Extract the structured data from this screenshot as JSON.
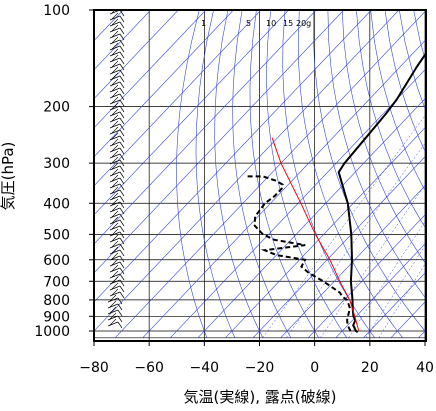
{
  "chart_data": {
    "type": "skew-t",
    "title": "",
    "xlabel": "気温(実線), 露点(破線)",
    "ylabel": "気圧(hPa)",
    "xlim": [
      -80,
      40
    ],
    "ylim": [
      1050,
      100
    ],
    "y_scale": "log",
    "x_ticks": [
      -80,
      -60,
      -40,
      -20,
      0,
      20,
      40
    ],
    "x_tick_labels": [
      "−80",
      "−60",
      "−40",
      "−20",
      "0",
      "20",
      "40"
    ],
    "y_ticks": [
      100,
      200,
      300,
      400,
      500,
      600,
      700,
      800,
      900,
      1000
    ],
    "y_tick_labels": [
      "100",
      "200",
      "300",
      "400",
      "500",
      "600",
      "700",
      "800",
      "900",
      "1000"
    ],
    "mixing_ratio_labels": [
      {
        "value": 1,
        "text": "1"
      },
      {
        "value": 5,
        "text": "5"
      },
      {
        "value": 10,
        "text": "10"
      },
      {
        "value": 15,
        "text": "15"
      },
      {
        "value": 20,
        "text": "20g"
      }
    ],
    "series": [
      {
        "style": "solid",
        "color": "#000000",
        "points": [
          [
            1008,
            16
          ],
          [
            1000,
            15
          ],
          [
            960,
            12
          ],
          [
            925,
            11
          ],
          [
            900,
            9
          ],
          [
            850,
            6
          ],
          [
            800,
            3
          ],
          [
            700,
            -4
          ],
          [
            600,
            -11
          ],
          [
            500,
            -20
          ],
          [
            400,
            -32
          ],
          [
            320,
            -46
          ],
          [
            300,
            -47
          ],
          [
            250,
            -48
          ],
          [
            210,
            -49
          ],
          [
            190,
            -50
          ],
          [
            150,
            -54
          ],
          [
            120,
            -57
          ],
          [
            100,
            -59
          ]
        ]
      },
      {
        "style": "dashed",
        "color": "#000000",
        "points": [
          [
            1000,
            13
          ],
          [
            960,
            10
          ],
          [
            925,
            8
          ],
          [
            900,
            7
          ],
          [
            850,
            5
          ],
          [
            800,
            1
          ],
          [
            780,
            -2
          ],
          [
            760,
            -4
          ],
          [
            700,
            -14
          ],
          [
            660,
            -22
          ],
          [
            630,
            -27
          ],
          [
            600,
            -28
          ],
          [
            580,
            -40
          ],
          [
            560,
            -46
          ],
          [
            540,
            -33
          ],
          [
            520,
            -46
          ],
          [
            500,
            -52
          ],
          [
            470,
            -58
          ],
          [
            440,
            -61
          ],
          [
            400,
            -62
          ],
          [
            380,
            -61
          ],
          [
            360,
            -61
          ],
          [
            350,
            -62
          ],
          [
            340,
            -66
          ],
          [
            330,
            -72
          ],
          [
            330,
            -78
          ]
        ]
      },
      {
        "style": "solid",
        "color": "#ff0000",
        "points": [
          [
            1000,
            16
          ],
          [
            900,
            9.5
          ],
          [
            800,
            2
          ],
          [
            700,
            -8
          ],
          [
            600,
            -19
          ],
          [
            500,
            -33
          ],
          [
            400,
            -49
          ],
          [
            300,
            -70
          ],
          [
            250,
            -82
          ]
        ]
      }
    ],
    "grid": true,
    "wind_barbs": "left side, 100–1000 hPa"
  }
}
